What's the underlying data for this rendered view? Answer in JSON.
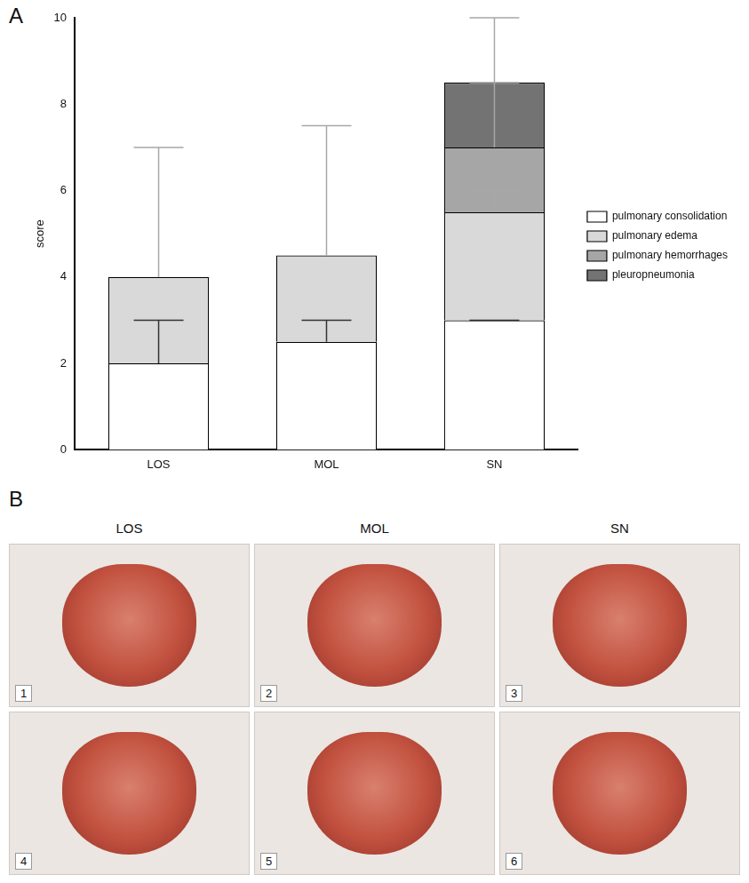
{
  "chart_data": {
    "type": "bar",
    "stacked": true,
    "categories": [
      "LOS",
      "MOL",
      "SN"
    ],
    "y_label": "score",
    "ylim": [
      0,
      10
    ],
    "yticks": [
      0,
      2,
      4,
      6,
      8,
      10
    ],
    "grid": false,
    "legend": "right",
    "series": [
      {
        "name": "pulmonary consolidation",
        "color": "#ffffff",
        "values": [
          2,
          2.5,
          3
        ],
        "errors": [
          1,
          0.5,
          0
        ]
      },
      {
        "name": "pulmonary edema",
        "color": "#d9d9d9",
        "values": [
          2,
          2,
          2.5
        ],
        "errors": [
          3,
          3,
          0.5
        ]
      },
      {
        "name": "pulmonary hemorrhages",
        "color": "#a6a6a6",
        "values": [
          0,
          0,
          1.5
        ],
        "errors": [
          0,
          0,
          1.5
        ]
      },
      {
        "name": "pleuropneumonia",
        "color": "#737373",
        "values": [
          0,
          0,
          1.5
        ],
        "errors": [
          0,
          0,
          1.5
        ]
      }
    ]
  },
  "panel_letters": [
    "A",
    "B"
  ],
  "photo_panel": {
    "columns": [
      "LOS",
      "MOL",
      "SN"
    ],
    "photo_numbers": [
      1,
      2,
      3,
      4,
      5,
      6
    ]
  }
}
